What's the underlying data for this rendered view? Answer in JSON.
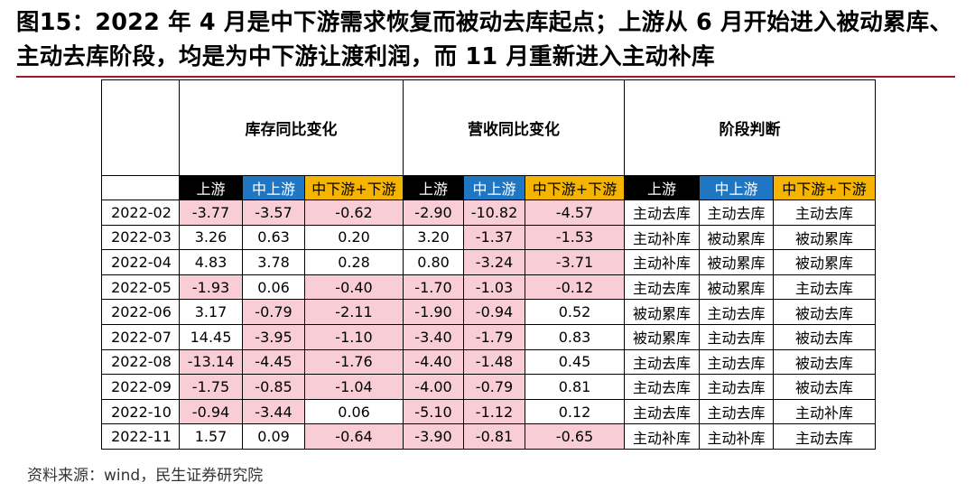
{
  "title": "图15：2022 年 4 月是中下游需求恢复而被动去库起点；上游从 6 月开始进入被动累库、主动去库阶段，均是为中下游让渡利润，而 11 月重新进入主动补库",
  "table": {
    "groups": [
      "库存同比变化",
      "营收同比变化",
      "阶段判断"
    ],
    "sub_headers": [
      "上游",
      "中上游",
      "中下游+下游"
    ],
    "rows": [
      {
        "date": "2022-02",
        "inv": [
          "-3.77",
          "-3.57",
          "-0.62"
        ],
        "rev": [
          "-2.90",
          "-10.82",
          "-4.57"
        ],
        "stage": [
          "主动去库",
          "主动去库",
          "主动去库"
        ]
      },
      {
        "date": "2022-03",
        "inv": [
          "3.26",
          "0.63",
          "0.20"
        ],
        "rev": [
          "3.20",
          "-1.37",
          "-1.53"
        ],
        "stage": [
          "主动补库",
          "被动累库",
          "被动累库"
        ]
      },
      {
        "date": "2022-04",
        "inv": [
          "4.83",
          "3.78",
          "0.28"
        ],
        "rev": [
          "0.80",
          "-3.24",
          "-3.71"
        ],
        "stage": [
          "主动补库",
          "被动累库",
          "被动累库"
        ]
      },
      {
        "date": "2022-05",
        "inv": [
          "-1.93",
          "0.06",
          "-0.40"
        ],
        "rev": [
          "-1.70",
          "-1.03",
          "-0.12"
        ],
        "stage": [
          "主动去库",
          "被动累库",
          "主动去库"
        ]
      },
      {
        "date": "2022-06",
        "inv": [
          "3.17",
          "-0.79",
          "-2.11"
        ],
        "rev": [
          "-1.90",
          "-0.94",
          "0.52"
        ],
        "stage": [
          "被动累库",
          "主动去库",
          "被动去库"
        ]
      },
      {
        "date": "2022-07",
        "inv": [
          "14.45",
          "-3.95",
          "-1.10"
        ],
        "rev": [
          "-3.40",
          "-1.79",
          "0.83"
        ],
        "stage": [
          "被动累库",
          "主动去库",
          "被动去库"
        ]
      },
      {
        "date": "2022-08",
        "inv": [
          "-13.14",
          "-4.45",
          "-1.76"
        ],
        "rev": [
          "-4.40",
          "-1.48",
          "0.45"
        ],
        "stage": [
          "主动去库",
          "主动去库",
          "被动去库"
        ]
      },
      {
        "date": "2022-09",
        "inv": [
          "-1.75",
          "-0.85",
          "-1.04"
        ],
        "rev": [
          "-4.00",
          "-0.79",
          "0.81"
        ],
        "stage": [
          "主动去库",
          "主动去库",
          "被动去库"
        ]
      },
      {
        "date": "2022-10",
        "inv": [
          "-0.94",
          "-3.44",
          "0.06"
        ],
        "rev": [
          "-5.10",
          "-1.12",
          "0.12"
        ],
        "stage": [
          "主动去库",
          "主动去库",
          "主动补库"
        ]
      },
      {
        "date": "2022-11",
        "inv": [
          "1.57",
          "0.09",
          "-0.64"
        ],
        "rev": [
          "-3.90",
          "-0.81",
          "-0.65"
        ],
        "stage": [
          "主动补库",
          "主动补库",
          "主动去库"
        ]
      }
    ]
  },
  "source": "资料来源：wind，民生证券研究院",
  "colors": {
    "negative_fill": "#f8cdd6",
    "upstream_header": "#000000",
    "mid_upstream_header": "#1f77c4",
    "downstream_header": "#f5b400",
    "title_rule": "#a0192a"
  }
}
